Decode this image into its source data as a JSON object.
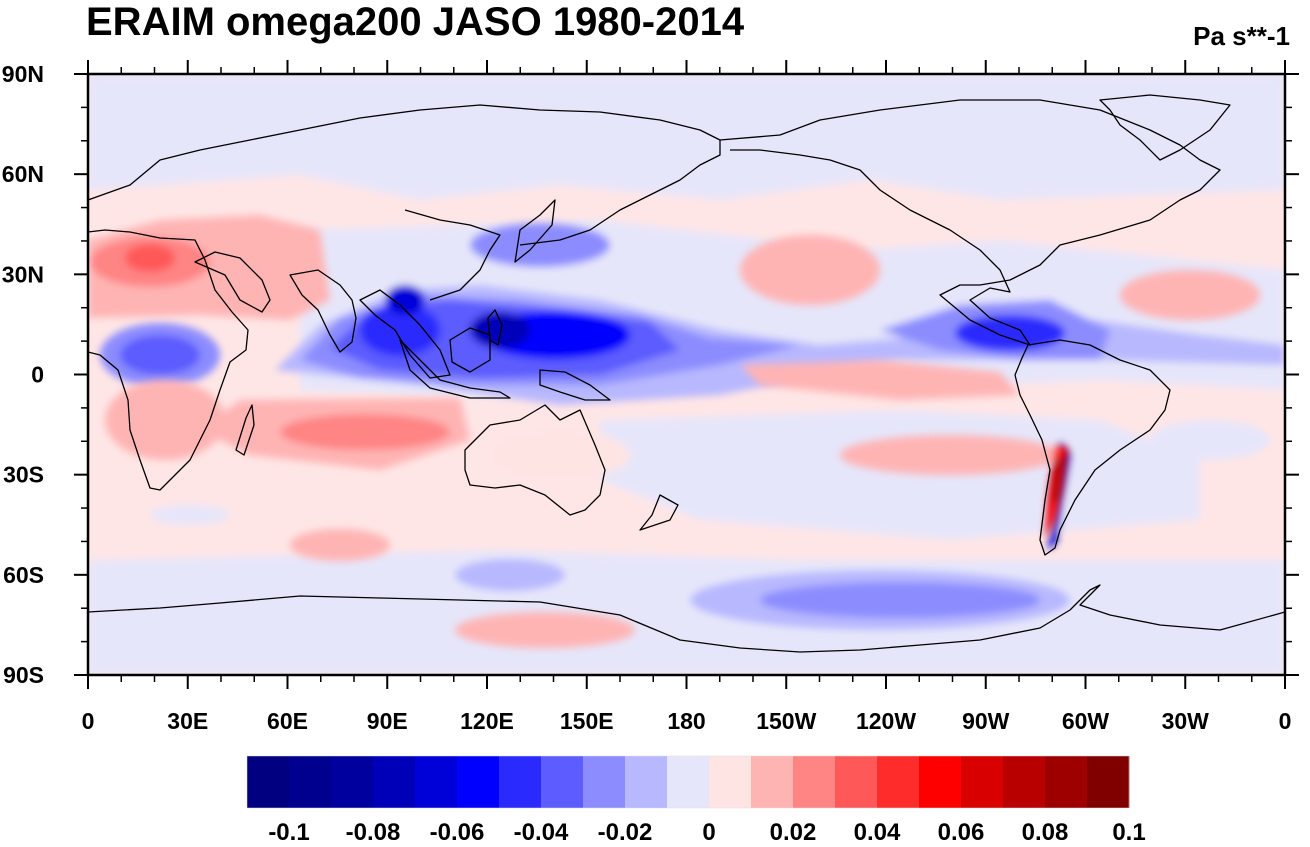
{
  "title": "ERAIM omega200 JASO 1980-2014",
  "units": "Pa s**-1",
  "map": {
    "x_tick_labels": [
      "0",
      "30E",
      "60E",
      "90E",
      "120E",
      "150E",
      "180",
      "150W",
      "120W",
      "90W",
      "60W",
      "30W",
      "0"
    ],
    "y_tick_labels": [
      "90N",
      "60N",
      "30N",
      "0",
      "30S",
      "60S",
      "90S"
    ],
    "lon_range": [
      0,
      360
    ],
    "lat_range": [
      -90,
      90
    ]
  },
  "colorbar": {
    "colors": [
      "#000080",
      "#00008e",
      "#00009e",
      "#0000b8",
      "#0000d8",
      "#0000ff",
      "#2a2aff",
      "#5c5cff",
      "#8c8cff",
      "#b8b8ff",
      "#e6e6fa",
      "#ffe4e4",
      "#ffb4b4",
      "#ff8484",
      "#ff5858",
      "#ff2c2c",
      "#ff0000",
      "#d80000",
      "#b80000",
      "#9e0000",
      "#800000"
    ],
    "labels": [
      "-0.1",
      "-0.08",
      "-0.06",
      "-0.04",
      "-0.02",
      "0",
      "0.02",
      "0.04",
      "0.06",
      "0.08",
      "0.1"
    ]
  }
}
